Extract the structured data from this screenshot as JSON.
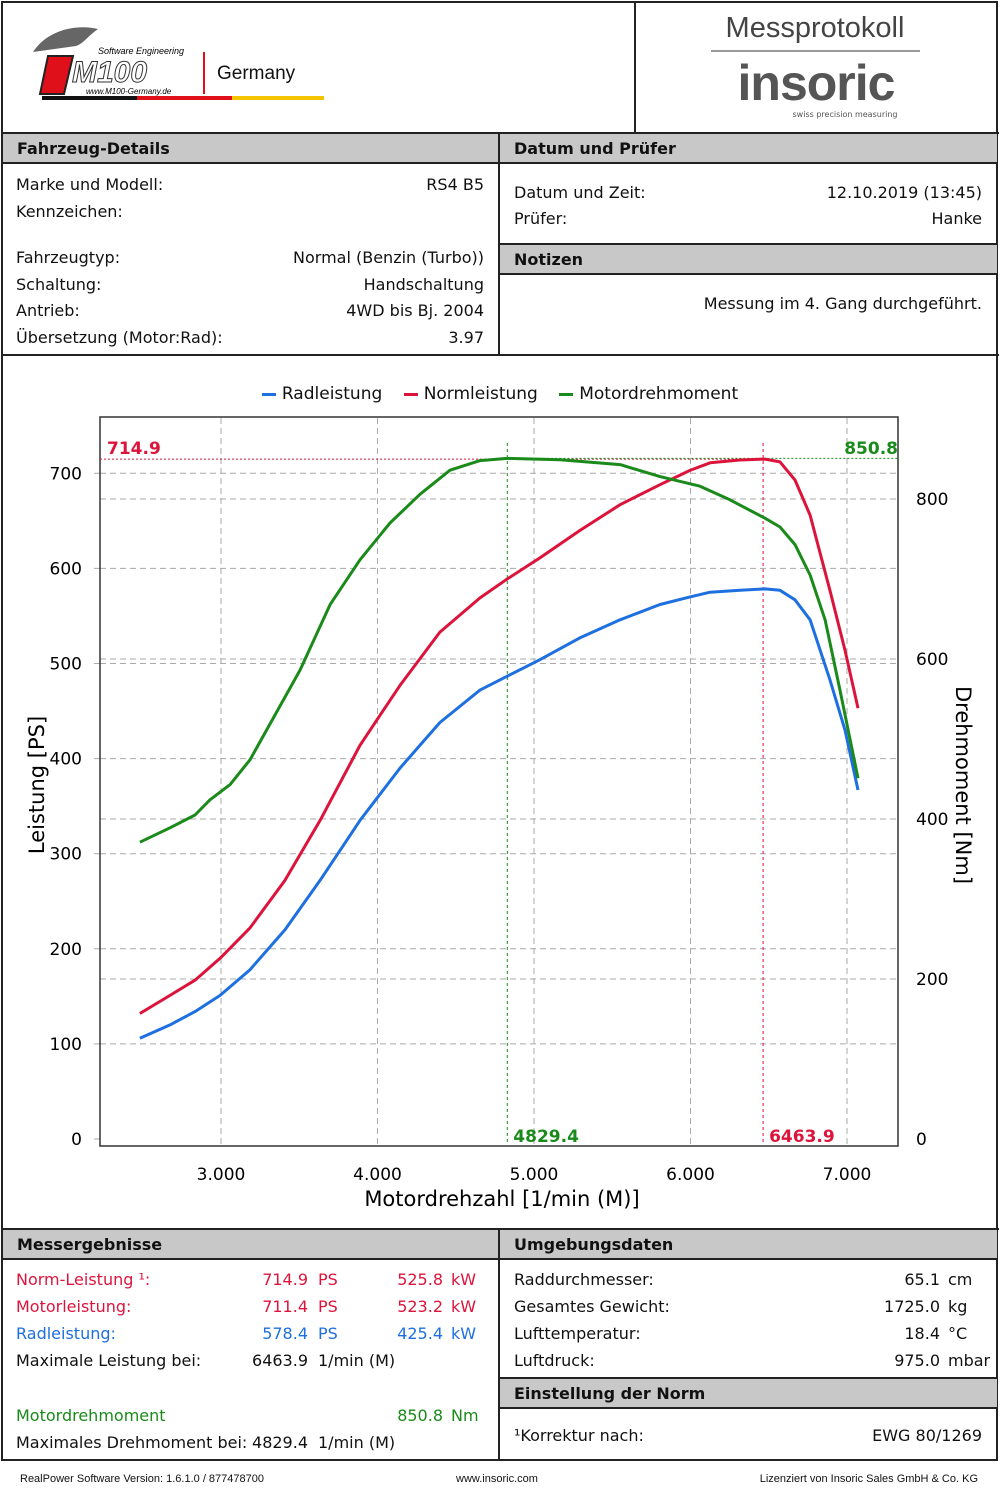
{
  "header": {
    "logo_left": {
      "brand": "M100",
      "tagline": "Software Engineering",
      "url": "www.M100-Germany.de",
      "country": "Germany"
    },
    "title": "Messprotokoll",
    "logo_right": {
      "brand": "insoric",
      "tagline": "swiss precision measuring"
    }
  },
  "vehicle": {
    "title": "Fahrzeug-Details",
    "rows": [
      {
        "label": "Marke und Modell:",
        "value": "RS4 B5"
      },
      {
        "label": "Kennzeichen:",
        "value": ""
      },
      {
        "label": "Fahrzeugtyp:",
        "value": "Normal (Benzin (Turbo))"
      },
      {
        "label": "Schaltung:",
        "value": "Handschaltung"
      },
      {
        "label": "Antrieb:",
        "value": "4WD bis Bj. 2004"
      },
      {
        "label": "Übersetzung (Motor:Rad):",
        "value": "3.97"
      }
    ]
  },
  "date": {
    "title": "Datum und Prüfer",
    "rows": [
      {
        "label": "Datum und Zeit:",
        "value": "12.10.2019 (13:45)"
      },
      {
        "label": "Prüfer:",
        "value": "Hanke"
      }
    ]
  },
  "notes": {
    "title": "Notizen",
    "text": "Messung im 4. Gang durchgeführt."
  },
  "results": {
    "title": "Messergebnisse",
    "rows": [
      {
        "label": "Norm-Leistung ¹:",
        "ps": "714.9",
        "ps_unit": "PS",
        "kw": "525.8",
        "kw_unit": "kW"
      },
      {
        "label": "Motorleistung:",
        "ps": "711.4",
        "ps_unit": "PS",
        "kw": "523.2",
        "kw_unit": "kW"
      },
      {
        "label": "Radleistung:",
        "ps": "578.4",
        "ps_unit": "PS",
        "kw": "425.4",
        "kw_unit": "kW"
      }
    ],
    "max_power_label": "Maximale Leistung bei:",
    "max_power_value": "6463.9",
    "max_power_unit": "1/min (M)",
    "torque_label": "Motordrehmoment",
    "torque_value": "850.8",
    "torque_unit": "Nm",
    "max_torque_label": "Maximales Drehmoment bei:",
    "max_torque_value": "4829.4",
    "max_torque_unit": "1/min (M)"
  },
  "env": {
    "title": "Umgebungsdaten",
    "rows": [
      {
        "label": "Raddurchmesser:",
        "value": "65.1",
        "unit": "cm"
      },
      {
        "label": "Gesamtes Gewicht:",
        "value": "1725.0",
        "unit": "kg"
      },
      {
        "label": "Lufttemperatur:",
        "value": "18.4",
        "unit": "°C"
      },
      {
        "label": "Luftdruck:",
        "value": "975.0",
        "unit": "mbar"
      }
    ]
  },
  "norm": {
    "title": "Einstellung der Norm",
    "label": "¹Korrektur nach:",
    "value": "EWG 80/1269"
  },
  "footer": {
    "left": "RealPower Software Version: 1.6.1.0 / 877478700",
    "center": "www.insoric.com",
    "right": "Lizenziert von Insoric Sales GmbH & Co. KG"
  },
  "colors": {
    "rad": "#1e6fe0",
    "norm": "#dc143c",
    "torque": "#1a8a1a"
  },
  "chart_data": {
    "type": "line",
    "xlabel": "Motordrehzahl [1/min (M)]",
    "ylabel": "Leistung [PS]",
    "y2label": "Drehmoment [Nm]",
    "xlim": [
      2250,
      7350
    ],
    "ylim": [
      0,
      760
    ],
    "y2lim": [
      0,
      874
    ],
    "xticks": [
      3000,
      4000,
      5000,
      6000,
      7000
    ],
    "xtick_labels": [
      "3.000",
      "4.000",
      "5.000",
      "6.000",
      "7.000"
    ],
    "yticks": [
      0,
      100,
      200,
      300,
      400,
      500,
      600,
      700
    ],
    "ytick_labels": [
      "0",
      "100",
      "200",
      "300",
      "400",
      "500",
      "600",
      "700"
    ],
    "y2ticks": [
      0,
      200,
      400,
      600,
      800
    ],
    "y2tick_labels": [
      "0",
      "200",
      "400",
      "600",
      "800"
    ],
    "grid": true,
    "legend": "top",
    "markers": {
      "max_power": {
        "rpm": 6463.9,
        "value": 714.9,
        "label_value": "714.9",
        "label_rpm": "6463.9"
      },
      "max_torque": {
        "rpm": 4829.4,
        "value": 850.8,
        "label_value": "850.8",
        "label_rpm": "4829.4"
      }
    },
    "series": [
      {
        "name": "Radleistung",
        "axis": "left",
        "color": "#1e6fe0",
        "x": [
          2482,
          2674,
          2834,
          2994,
          3185,
          3409,
          3633,
          3888,
          4144,
          4399,
          4655,
          4821,
          5038,
          5294,
          5550,
          5805,
          5997,
          6125,
          6316,
          6476,
          6572,
          6668,
          6764,
          6891,
          6987,
          7070
        ],
        "y": [
          106,
          120,
          134,
          151,
          178,
          220,
          272,
          335,
          390,
          438,
          472,
          486,
          504,
          527,
          546,
          562,
          570,
          575,
          577,
          578.4,
          577,
          567,
          546,
          483,
          430,
          367
        ]
      },
      {
        "name": "Normleistung",
        "axis": "left",
        "color": "#dc143c",
        "x": [
          2482,
          2674,
          2834,
          2994,
          3185,
          3409,
          3633,
          3888,
          4144,
          4399,
          4655,
          4821,
          5038,
          5294,
          5550,
          5805,
          5997,
          6125,
          6316,
          6476,
          6572,
          6668,
          6764,
          6891,
          6987,
          7070
        ],
        "y": [
          132,
          151,
          167,
          190,
          222,
          272,
          335,
          414,
          477,
          533,
          569,
          588,
          611,
          640,
          667,
          688,
          703,
          711,
          714,
          714.9,
          712,
          693,
          656,
          577,
          514,
          453
        ]
      },
      {
        "name": "Motordrehmoment",
        "axis": "right",
        "color": "#1a8a1a",
        "x": [
          2482,
          2674,
          2834,
          2930,
          3058,
          3185,
          3345,
          3505,
          3697,
          3888,
          4080,
          4272,
          4463,
          4655,
          4829,
          5166,
          5550,
          5805,
          6061,
          6252,
          6476,
          6572,
          6668,
          6764,
          6860,
          6955,
          7070
        ],
        "y": [
          371,
          389,
          405,
          424,
          443,
          474,
          530,
          586,
          668,
          724,
          770,
          806,
          836,
          848,
          850.8,
          849,
          843,
          828,
          816,
          799,
          776,
          765,
          743,
          705,
          649,
          561,
          451
        ]
      }
    ]
  }
}
